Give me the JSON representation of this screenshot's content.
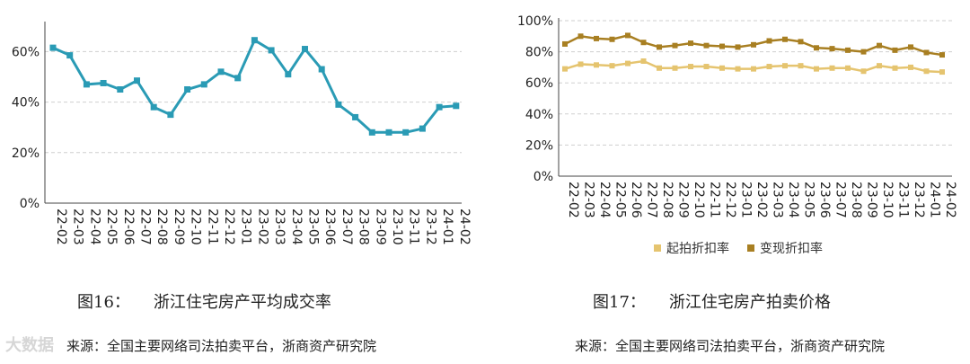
{
  "left": {
    "caption_num": "图16：",
    "caption_text": "浙江住宅房产平均成交率",
    "source": "来源：全国主要网络司法拍卖平台，浙商资产研究院",
    "chart_data": {
      "type": "line",
      "categories": [
        "22-02",
        "22-03",
        "22-04",
        "22-05",
        "22-06",
        "22-07",
        "22-08",
        "22-09",
        "22-10",
        "22-11",
        "22-12",
        "23-01",
        "23-02",
        "23-03",
        "23-04",
        "23-05",
        "23-06",
        "23-07",
        "23-08",
        "23-09",
        "23-10",
        "23-11",
        "23-12",
        "24-01",
        "24-02"
      ],
      "yticks": [
        "0%",
        "20%",
        "40%",
        "60%"
      ],
      "ylim": [
        0,
        74
      ],
      "series": [
        {
          "values": [
            61.5,
            58.5,
            47,
            47.5,
            45,
            48.5,
            38,
            35,
            45,
            47,
            52,
            49.5,
            64.5,
            60.5,
            51,
            61,
            53,
            39,
            34,
            28,
            28,
            28,
            29.5,
            38,
            38.5
          ],
          "color": "#2a9bb5"
        }
      ],
      "grid": "horizontal-dashed"
    }
  },
  "right": {
    "caption_num": "图17：",
    "caption_text": "浙江住宅房产拍卖价格",
    "source": "来源：全国主要网络司法拍卖平台，浙商资产研究院",
    "chart_data": {
      "type": "line",
      "categories": [
        "22-02",
        "22-03",
        "22-04",
        "22-05",
        "22-06",
        "22-07",
        "22-08",
        "22-09",
        "22-10",
        "22-11",
        "22-12",
        "23-01",
        "23-02",
        "23-03",
        "23-04",
        "23-05",
        "23-06",
        "23-07",
        "23-08",
        "23-09",
        "23-10",
        "23-11",
        "23-12",
        "24-01",
        "24-02"
      ],
      "yticks": [
        "0%",
        "20%",
        "40%",
        "60%",
        "80%",
        "100%"
      ],
      "ylim": [
        0,
        100
      ],
      "series": [
        {
          "name": "起拍折扣率",
          "color": "#e5c46f",
          "values": [
            69,
            72,
            71.5,
            71,
            72.5,
            74,
            69.5,
            69.5,
            70.5,
            70.5,
            69.5,
            69,
            69,
            70.5,
            71,
            71,
            69,
            69.5,
            69.5,
            67.5,
            71,
            69.5,
            70,
            67.5,
            67
          ]
        },
        {
          "name": "变现折扣率",
          "color": "#a87f22",
          "values": [
            85,
            90,
            88.5,
            88,
            90.5,
            86,
            83,
            84,
            85.5,
            84,
            83.5,
            83,
            84.5,
            87,
            88,
            86.5,
            82.5,
            82,
            81,
            80,
            84,
            81,
            83,
            79.5,
            78
          ]
        }
      ],
      "legend": "bottom",
      "grid": "horizontal-dashed"
    }
  },
  "watermark": "大数据"
}
